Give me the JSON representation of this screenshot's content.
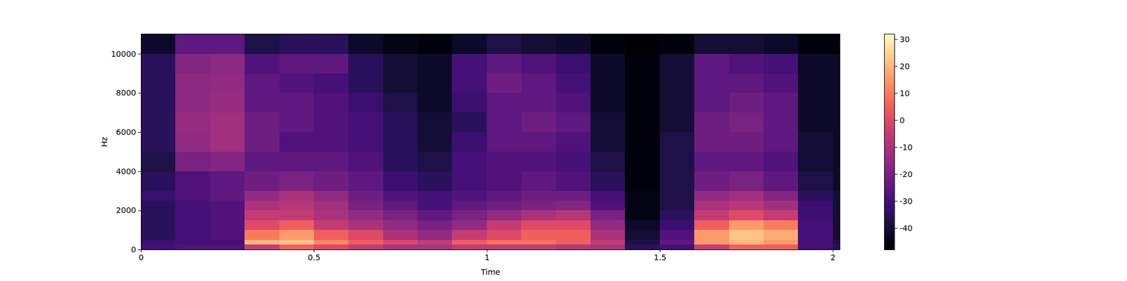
{
  "chart_data": {
    "type": "heatmap",
    "x_label": "Time",
    "y_label": "Hz",
    "xlim": [
      0,
      2.02
    ],
    "xticks": [
      0,
      0.5,
      1,
      1.5,
      2
    ],
    "ylim": [
      0,
      11025
    ],
    "yticks": [
      0,
      2000,
      4000,
      6000,
      8000,
      10000
    ],
    "color": "magma",
    "time_edges": [
      0,
      0.1,
      0.2,
      0.3,
      0.4,
      0.5,
      0.6,
      0.7,
      0.8,
      0.9,
      1.0,
      1.1,
      1.2,
      1.3,
      1.4,
      1.5,
      1.6,
      1.7,
      1.8,
      1.9,
      2.0,
      2.02
    ],
    "frequency_edges": [
      0,
      250,
      500,
      1000,
      1500,
      2000,
      2500,
      3000,
      4000,
      5000,
      6000,
      7000,
      8000,
      9000,
      10000,
      11025
    ],
    "cells": [
      [
        -30,
        -28,
        -28,
        -5,
        5,
        0,
        -5,
        -10,
        -10,
        -5,
        -5,
        -5,
        -8,
        -10,
        -35,
        -30,
        -5,
        5,
        5,
        -30,
        -35
      ],
      [
        -32,
        -30,
        -30,
        20,
        22,
        12,
        5,
        0,
        -5,
        5,
        8,
        8,
        5,
        -5,
        -38,
        -25,
        15,
        20,
        15,
        -30,
        -38
      ],
      [
        -35,
        -30,
        -28,
        10,
        15,
        5,
        0,
        -10,
        -15,
        -5,
        0,
        5,
        5,
        -10,
        -40,
        -28,
        15,
        22,
        18,
        -30,
        -40
      ],
      [
        -35,
        -30,
        -28,
        0,
        5,
        -5,
        -10,
        -15,
        -20,
        -15,
        -5,
        0,
        0,
        -15,
        -42,
        -32,
        5,
        15,
        10,
        -30,
        -40
      ],
      [
        -35,
        -30,
        -28,
        -5,
        -5,
        -10,
        -15,
        -20,
        -25,
        -20,
        -15,
        -10,
        -8,
        -20,
        -45,
        -35,
        -5,
        0,
        -5,
        -32,
        -40
      ],
      [
        -35,
        -30,
        -28,
        -10,
        -8,
        -12,
        -20,
        -25,
        -30,
        -25,
        -22,
        -20,
        -18,
        -28,
        -45,
        -38,
        -10,
        -8,
        -12,
        -32,
        -40
      ],
      [
        -32,
        -28,
        -25,
        -15,
        -10,
        -15,
        -22,
        -28,
        -30,
        -28,
        -25,
        -22,
        -22,
        -30,
        -45,
        -38,
        -15,
        -12,
        -18,
        -35,
        -40
      ],
      [
        -35,
        -28,
        -25,
        -22,
        -20,
        -22,
        -25,
        -32,
        -35,
        -30,
        -28,
        -25,
        -28,
        -35,
        -46,
        -38,
        -22,
        -20,
        -25,
        -38,
        -42
      ],
      [
        -38,
        -20,
        -18,
        -25,
        -25,
        -25,
        -28,
        -35,
        -38,
        -30,
        -28,
        -28,
        -30,
        -38,
        -46,
        -38,
        -25,
        -25,
        -28,
        -40,
        -42
      ],
      [
        -35,
        -15,
        -12,
        -22,
        -28,
        -28,
        -30,
        -35,
        -40,
        -32,
        -25,
        -25,
        -28,
        -40,
        -46,
        -38,
        -22,
        -22,
        -25,
        -40,
        -42
      ],
      [
        -35,
        -14,
        -12,
        -22,
        -25,
        -28,
        -30,
        -35,
        -40,
        -35,
        -25,
        -22,
        -25,
        -40,
        -46,
        -40,
        -22,
        -20,
        -25,
        -42,
        -42
      ],
      [
        -35,
        -16,
        -14,
        -25,
        -25,
        -28,
        -32,
        -38,
        -42,
        -32,
        -25,
        -25,
        -28,
        -42,
        -46,
        -40,
        -25,
        -22,
        -25,
        -42,
        -42
      ],
      [
        -35,
        -16,
        -15,
        -25,
        -28,
        -30,
        -35,
        -40,
        -42,
        -30,
        -22,
        -25,
        -30,
        -42,
        -46,
        -40,
        -25,
        -25,
        -28,
        -42,
        -42
      ],
      [
        -35,
        -18,
        -16,
        -28,
        -25,
        -25,
        -35,
        -40,
        -42,
        -30,
        -25,
        -28,
        -32,
        -42,
        -46,
        -40,
        -25,
        -28,
        -30,
        -42,
        -42
      ],
      [
        -42,
        -25,
        -25,
        -38,
        -35,
        -35,
        -42,
        -45,
        -46,
        -42,
        -38,
        -40,
        -42,
        -46,
        -48,
        -46,
        -40,
        -40,
        -42,
        -46,
        -46
      ]
    ],
    "colorbar": {
      "range": [
        -48,
        32
      ],
      "ticks": [
        -40,
        -30,
        -20,
        -10,
        0,
        10,
        20,
        30
      ]
    }
  }
}
